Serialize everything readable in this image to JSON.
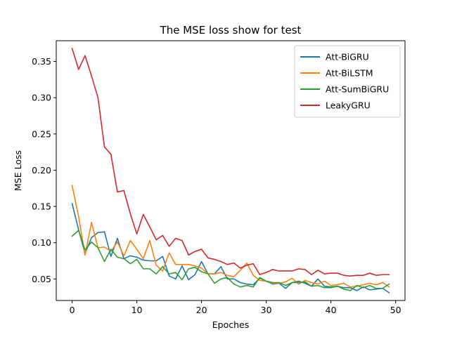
{
  "chart_data": {
    "type": "line",
    "title": "The MSE loss show for test",
    "xlabel": "Epoches",
    "ylabel": "MSE Loss",
    "xlim": [
      -2.45,
      51.45
    ],
    "ylim": [
      0.0203,
      0.3786
    ],
    "xticks": [
      0,
      10,
      20,
      30,
      40,
      50
    ],
    "yticks": [
      0.05,
      0.1,
      0.15,
      0.2,
      0.25,
      0.3,
      0.35
    ],
    "ytick_labels": [
      "0.05",
      "0.10",
      "0.15",
      "0.20",
      "0.25",
      "0.30",
      "0.35"
    ],
    "grid": false,
    "legend_position": "top-right",
    "x": [
      0,
      1,
      2,
      3,
      4,
      5,
      6,
      7,
      8,
      9,
      10,
      11,
      12,
      13,
      14,
      15,
      16,
      17,
      18,
      19,
      20,
      21,
      22,
      23,
      24,
      25,
      26,
      27,
      28,
      29,
      30,
      31,
      32,
      33,
      34,
      35,
      36,
      37,
      38,
      39,
      40,
      41,
      42,
      43,
      44,
      45,
      46,
      47,
      48,
      49
    ],
    "series": [
      {
        "name": "Att-BiGRU",
        "color": "#1f77b4",
        "values": [
          0.154,
          0.118,
          0.085,
          0.107,
          0.114,
          0.115,
          0.081,
          0.106,
          0.078,
          0.082,
          0.08,
          0.076,
          0.075,
          0.075,
          0.081,
          0.054,
          0.05,
          0.068,
          0.049,
          0.056,
          0.074,
          0.057,
          0.057,
          0.067,
          0.05,
          0.05,
          0.045,
          0.043,
          0.042,
          0.051,
          0.047,
          0.043,
          0.044,
          0.037,
          0.045,
          0.047,
          0.044,
          0.04,
          0.05,
          0.04,
          0.039,
          0.04,
          0.038,
          0.038,
          0.034,
          0.039,
          0.035,
          0.036,
          0.037,
          0.031
        ]
      },
      {
        "name": "Att-BiLSTM",
        "color": "#ff7f0e",
        "values": [
          0.179,
          0.136,
          0.083,
          0.128,
          0.093,
          0.094,
          0.088,
          0.101,
          0.082,
          0.103,
          0.091,
          0.078,
          0.103,
          0.069,
          0.061,
          0.086,
          0.07,
          0.07,
          0.07,
          0.068,
          0.065,
          0.057,
          0.057,
          0.059,
          0.055,
          0.053,
          0.062,
          0.072,
          0.055,
          0.048,
          0.047,
          0.044,
          0.044,
          0.046,
          0.051,
          0.043,
          0.048,
          0.045,
          0.043,
          0.047,
          0.041,
          0.042,
          0.044,
          0.039,
          0.04,
          0.042,
          0.044,
          0.042,
          0.045,
          0.039
        ]
      },
      {
        "name": "Att-SumBiGRU",
        "color": "#2ca02c",
        "values": [
          0.109,
          0.117,
          0.09,
          0.101,
          0.093,
          0.074,
          0.091,
          0.08,
          0.078,
          0.071,
          0.077,
          0.064,
          0.064,
          0.057,
          0.067,
          0.057,
          0.059,
          0.049,
          0.064,
          0.066,
          0.06,
          0.057,
          0.044,
          0.05,
          0.052,
          0.043,
          0.039,
          0.041,
          0.039,
          0.052,
          0.047,
          0.045,
          0.045,
          0.041,
          0.045,
          0.045,
          0.046,
          0.04,
          0.041,
          0.038,
          0.038,
          0.04,
          0.036,
          0.034,
          0.041,
          0.038,
          0.041,
          0.037,
          0.037,
          0.043
        ]
      },
      {
        "name": "LeakyGRU",
        "color": "#d62728",
        "values": [
          0.368,
          0.339,
          0.358,
          0.33,
          0.3,
          0.232,
          0.222,
          0.17,
          0.172,
          0.14,
          0.112,
          0.139,
          0.122,
          0.104,
          0.11,
          0.095,
          0.106,
          0.103,
          0.083,
          0.088,
          0.091,
          0.079,
          0.077,
          0.074,
          0.07,
          0.072,
          0.065,
          0.069,
          0.071,
          0.056,
          0.059,
          0.063,
          0.061,
          0.061,
          0.061,
          0.064,
          0.063,
          0.056,
          0.062,
          0.057,
          0.058,
          0.058,
          0.055,
          0.054,
          0.055,
          0.055,
          0.058,
          0.055,
          0.056,
          0.056
        ]
      }
    ]
  }
}
